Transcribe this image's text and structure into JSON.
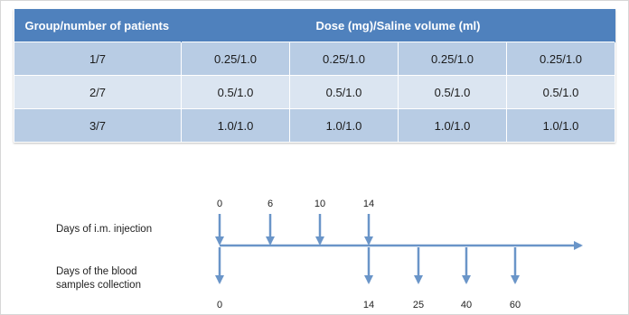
{
  "table": {
    "header_group": "Group/number of patients",
    "header_dose": "Dose (mg)/Saline volume (ml)",
    "rows": [
      {
        "group": "1/7",
        "doses": [
          "0.25/1.0",
          "0.25/1.0",
          "0.25/1.0",
          "0.25/1.0"
        ]
      },
      {
        "group": "2/7",
        "doses": [
          "0.5/1.0",
          "0.5/1.0",
          "0.5/1.0",
          "0.5/1.0"
        ]
      },
      {
        "group": "3/7",
        "doses": [
          "1.0/1.0",
          "1.0/1.0",
          "1.0/1.0",
          "1.0/1.0"
        ]
      }
    ]
  },
  "timeline": {
    "injection_label": "Days of i.m. injection",
    "blood_label_line1": "Days of the blood",
    "blood_label_line2": "samples collection",
    "injection_days": [
      "0",
      "6",
      "10",
      "14"
    ],
    "blood_days": [
      "0",
      "14",
      "25",
      "40",
      "60"
    ]
  },
  "colors": {
    "header": "#4f81bd",
    "row_dark": "#b8cce4",
    "row_light": "#dbe5f1",
    "arrow": "#6a95c8"
  }
}
